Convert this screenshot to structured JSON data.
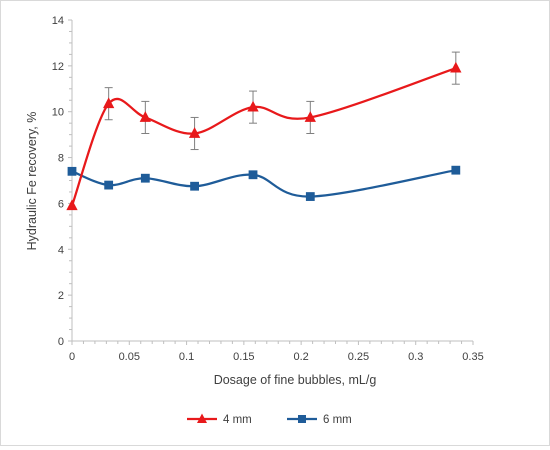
{
  "chart_data": {
    "type": "line",
    "xlabel": "Dosage of fine bubbles, mL/g",
    "ylabel": "Hydraulic Fe recovery, %",
    "xlim": [
      0,
      0.35
    ],
    "ylim": [
      0,
      14
    ],
    "x_ticks": [
      "0",
      "0.05",
      "0.1",
      "0.15",
      "0.2",
      "0.25",
      "0.3",
      "0.35"
    ],
    "y_ticks": [
      "0",
      "2",
      "4",
      "6",
      "8",
      "10",
      "12",
      "14"
    ],
    "grid": false,
    "legend_position": "bottom",
    "smooth": true,
    "series": [
      {
        "name": "4 mm",
        "color": "#e8191b",
        "marker": "triangle",
        "x": [
          0,
          0.032,
          0.064,
          0.107,
          0.158,
          0.208,
          0.335
        ],
        "y": [
          5.9,
          10.35,
          9.75,
          9.05,
          10.2,
          9.75,
          11.9
        ],
        "error": [
          0,
          0.7,
          0.7,
          0.7,
          0.7,
          0.7,
          0.7
        ]
      },
      {
        "name": "6 mm",
        "color": "#1f5c99",
        "marker": "square",
        "x": [
          0,
          0.032,
          0.064,
          0.107,
          0.158,
          0.208,
          0.335
        ],
        "y": [
          7.4,
          6.8,
          7.1,
          6.75,
          7.25,
          6.3,
          7.45
        ],
        "error": []
      }
    ]
  }
}
